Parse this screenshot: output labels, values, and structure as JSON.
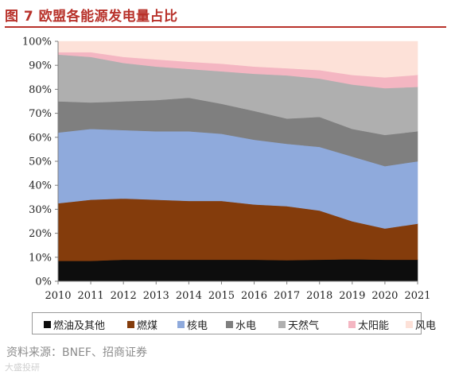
{
  "figure": {
    "title": "图 7  欧盟各能源发电量占比",
    "source": "资料来源：BNEF、招商证券",
    "watermark": "大盛投研"
  },
  "colors": {
    "title": "#b8322b",
    "fuel_oil": "#0d0d0d",
    "coal": "#843c0c",
    "nuclear": "#8faadc",
    "hydro": "#7f7f7f",
    "gas": "#afafaf",
    "solar": "#f4b6c2",
    "wind": "#fde1d8"
  },
  "chart_data": {
    "type": "area",
    "stacked": true,
    "percent": true,
    "x": [
      "2010",
      "2011",
      "2012",
      "2013",
      "2014",
      "2015",
      "2016",
      "2017",
      "2018",
      "2019",
      "2020",
      "2021"
    ],
    "ylim": [
      0,
      100
    ],
    "yticks": [
      "0%",
      "10%",
      "20%",
      "30%",
      "40%",
      "50%",
      "60%",
      "70%",
      "80%",
      "90%",
      "100%"
    ],
    "grid": false,
    "legend_position": "bottom",
    "series": [
      {
        "name": "燃油及其他",
        "color": "#0d0d0d",
        "values": [
          8.5,
          8.5,
          9.0,
          9.0,
          9.0,
          9.0,
          9.0,
          8.8,
          9.0,
          9.2,
          9.0,
          9.0
        ]
      },
      {
        "name": "燃煤",
        "color": "#843c0c",
        "values": [
          24.0,
          25.5,
          25.5,
          25.0,
          24.5,
          24.5,
          23.0,
          22.5,
          20.5,
          15.8,
          13.0,
          15.0
        ]
      },
      {
        "name": "核电",
        "color": "#8faadc",
        "values": [
          29.5,
          29.5,
          28.5,
          28.5,
          29.0,
          28.0,
          27.0,
          26.0,
          26.5,
          27.0,
          26.0,
          26.0
        ]
      },
      {
        "name": "水电",
        "color": "#7f7f7f",
        "values": [
          13.0,
          11.0,
          12.0,
          13.0,
          14.0,
          12.5,
          12.0,
          10.5,
          12.5,
          11.5,
          13.0,
          12.5
        ]
      },
      {
        "name": "天然气",
        "color": "#afafaf",
        "values": [
          19.5,
          19.0,
          16.0,
          14.0,
          12.0,
          13.5,
          15.5,
          18.0,
          16.0,
          18.5,
          19.5,
          18.5
        ]
      },
      {
        "name": "太阳能",
        "color": "#f4b6c2",
        "values": [
          1.0,
          2.0,
          2.5,
          3.0,
          3.0,
          3.2,
          3.0,
          3.0,
          3.5,
          4.0,
          4.5,
          5.0
        ]
      },
      {
        "name": "风电",
        "color": "#fde1d8",
        "values": [
          4.5,
          4.5,
          6.5,
          7.5,
          8.5,
          9.3,
          10.5,
          11.2,
          12.0,
          14.0,
          15.0,
          14.0
        ]
      }
    ]
  }
}
